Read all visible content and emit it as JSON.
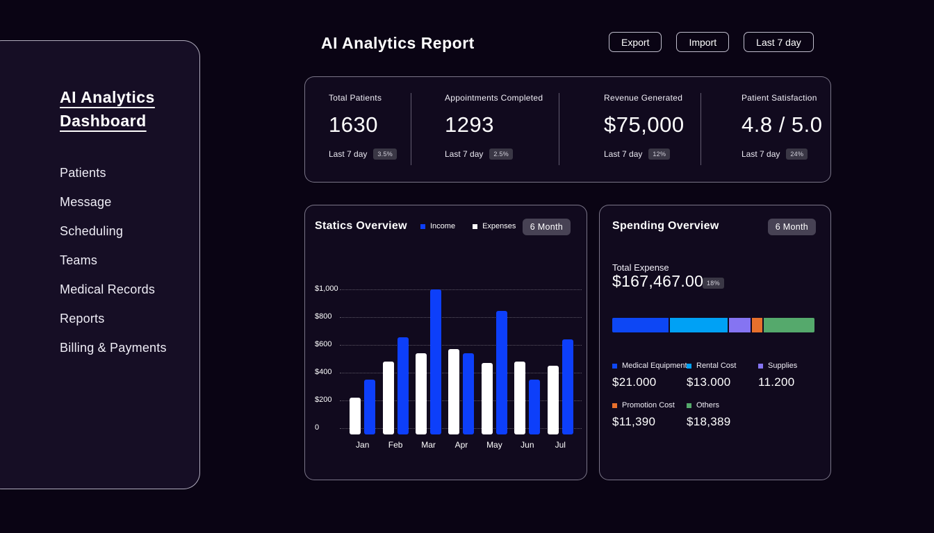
{
  "sidebar": {
    "title_line1": "AI  Analytics",
    "title_line2": "Dashboard",
    "items": [
      "Patients",
      "Message",
      "Scheduling",
      "Teams",
      "Medical Records",
      "Reports",
      "Billing & Payments"
    ]
  },
  "header": {
    "title": "AI  Analytics Report",
    "buttons": [
      "Export",
      "Import",
      "Last 7 day"
    ]
  },
  "stats": {
    "cards": [
      {
        "label": "Total Patients",
        "value": "1630",
        "period": "Last 7 day",
        "badge": "3.5%"
      },
      {
        "label": "Appointments Completed",
        "value": "1293",
        "period": "Last 7 day",
        "badge": "2.5%"
      },
      {
        "label": "Revenue Generated",
        "value": "$75,000",
        "period": "Last 7 day",
        "badge": "12%"
      },
      {
        "label": "Patient Satisfaction",
        "value": "4.8 / 5.0",
        "period": "Last 7 day",
        "badge": "24%"
      }
    ]
  },
  "chart_data": [
    {
      "type": "bar",
      "title": "Statics Overview",
      "period_label": "6 Month",
      "categories": [
        "Jan",
        "Feb",
        "Mar",
        "Apr",
        "May",
        "Jun",
        "Jul"
      ],
      "series": [
        {
          "name": "Income",
          "color": "#0d3ffa",
          "values": [
            350,
            655,
            1000,
            540,
            845,
            350,
            640
          ]
        },
        {
          "name": "Expenses",
          "color": "#ffffff",
          "values": [
            220,
            480,
            540,
            570,
            470,
            480,
            450
          ]
        }
      ],
      "ylabel": "",
      "xlabel": "",
      "ylim": [
        0,
        1000
      ],
      "yticks": [
        "$1,000",
        "$800",
        "$600",
        "$400",
        "$200",
        "0"
      ],
      "grid": "dotted horizontal",
      "legend_position": "top"
    },
    {
      "type": "stacked-bar",
      "title": "Spending Overview",
      "period_label": "6 Month",
      "total_label": "Total Expense",
      "total_value": "$167,467.00",
      "change_badge": "18%",
      "segments": [
        {
          "label": "Medical Equipment",
          "value": "$21.000",
          "color": "#0d47f5",
          "width_pct": 28.5
        },
        {
          "label": "Rental Cost",
          "value": "$13.000",
          "color": "#00a1f5",
          "width_pct": 29.3
        },
        {
          "label": "Supplies",
          "value": "11.200",
          "color": "#8574f2",
          "width_pct": 10.8
        },
        {
          "label": "Promotion Cost",
          "value": "$11,390",
          "color": "#e8702c",
          "width_pct": 5.3
        },
        {
          "label": "Others",
          "value": "$18,389",
          "color": "#55a96c",
          "width_pct": 25.6
        }
      ]
    }
  ],
  "colors": {
    "page_bg": "#0a0414",
    "card_bg": "#110a1e",
    "sidebar_bg": "#160e25",
    "income_blue": "#0d3ffa",
    "expenses_white": "#ffffff",
    "badge_bg": "#474254"
  }
}
